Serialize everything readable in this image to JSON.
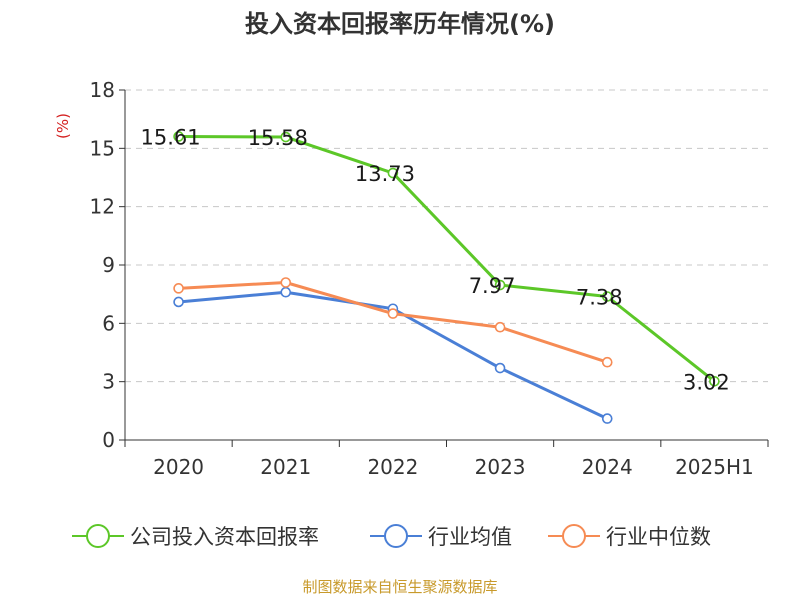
{
  "title": "投入资本回报率历年情况(%)",
  "source": "制图数据来自恒生聚源数据库",
  "chart_data": {
    "type": "line",
    "categories": [
      "2020",
      "2021",
      "2022",
      "2023",
      "2024",
      "2025H1"
    ],
    "ylabel": "(%)",
    "xlabel": "",
    "ylim": [
      0,
      18
    ],
    "yticks": [
      0,
      3,
      6,
      9,
      12,
      15,
      18
    ],
    "grid": true,
    "legend_position": "bottom",
    "series": [
      {
        "name": "公司投入资本回报率",
        "color": "#5cc728",
        "values": [
          15.61,
          15.58,
          13.73,
          7.97,
          7.38,
          3.02
        ],
        "labels": [
          "15.61",
          "15.58",
          "13.73",
          "7.97",
          "7.38",
          "3.02"
        ]
      },
      {
        "name": "行业均值",
        "color": "#4a7fd6",
        "values": [
          7.1,
          7.6,
          6.75,
          3.7,
          1.1,
          null
        ]
      },
      {
        "name": "行业中位数",
        "color": "#f68b54",
        "values": [
          7.8,
          8.1,
          6.5,
          5.8,
          4.0,
          null
        ]
      }
    ]
  }
}
